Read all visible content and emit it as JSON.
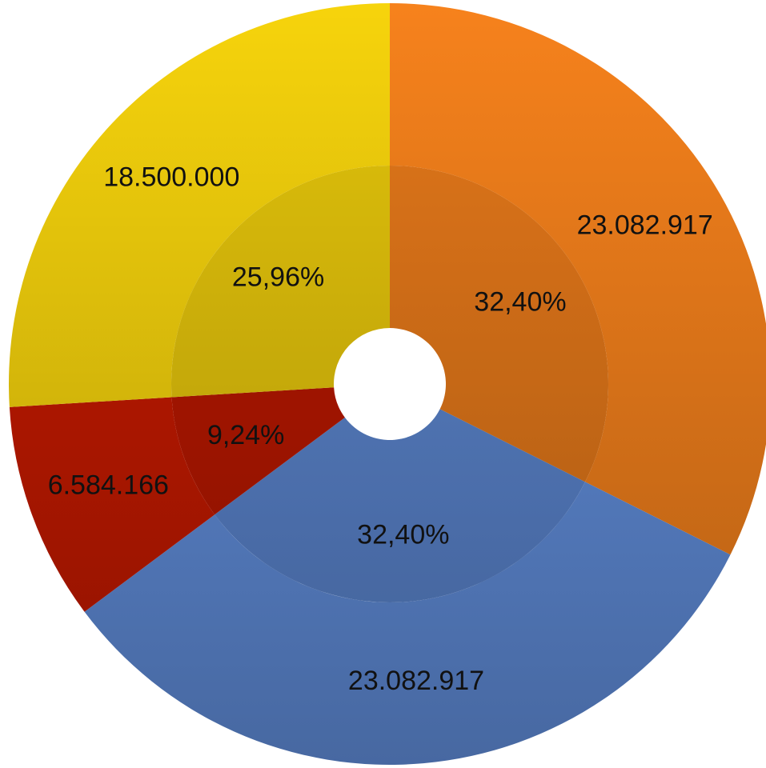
{
  "chart_data": {
    "type": "doughnut",
    "colors": [
      "#f7821c",
      "#6391e0",
      "#c81a00",
      "#f7d40c"
    ],
    "series": [
      {
        "values": [
          23082917,
          23082917,
          6584166,
          18500000
        ],
        "value_labels": [
          "23.082.917",
          "23.082.917",
          "6.584.166",
          "18.500.000"
        ]
      },
      {
        "values": [
          32.4,
          32.4,
          9.24,
          25.96
        ],
        "value_labels": [
          "32,40%",
          "32,40%",
          "9,24%",
          "25,96%"
        ]
      }
    ]
  }
}
